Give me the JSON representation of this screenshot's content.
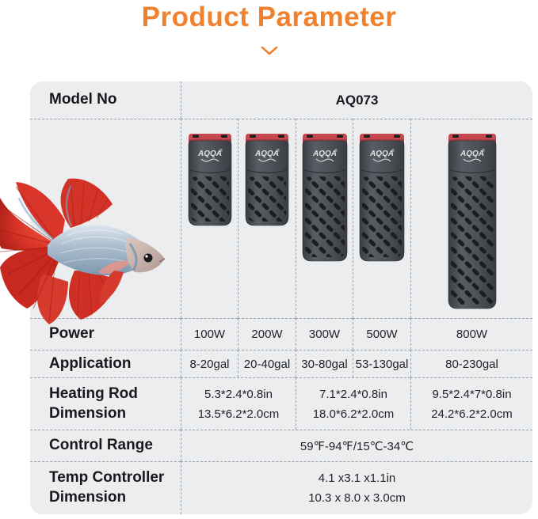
{
  "title": {
    "text": "Product Parameter"
  },
  "colors": {
    "accent_orange": "#F0812E",
    "table_bg": "#ECEDEF",
    "dash_gray": "#99A1A9",
    "heater_body_dark": "#393D42",
    "heater_body_mid": "#585D64",
    "heater_slot": "#1B1D20",
    "heater_cap_red": "#C8474F",
    "heater_cap_red_dark": "#A23A41",
    "logo_light": "#DFE1E3"
  },
  "table": {
    "model_row": {
      "label": "Model No",
      "value": "AQ073"
    },
    "power": {
      "label": "Power",
      "values": [
        "100W",
        "200W",
        "300W",
        "500W",
        "800W"
      ]
    },
    "application": {
      "label": "Application",
      "values": [
        "8-20gal",
        "20-40gal",
        "30-80gal",
        "53-130gal",
        "80-230gal"
      ]
    },
    "heating_rod": {
      "label_line1": "Heating Rod",
      "label_line2": "Dimension",
      "values": [
        {
          "inch": "5.3*2.4*0.8in",
          "cm": "13.5*6.2*2.0cm"
        },
        {
          "inch": "7.1*2.4*0.8in",
          "cm": "18.0*6.2*2.0cm"
        },
        {
          "inch": "9.5*2.4*7*0.8in",
          "cm": "24.2*6.2*2.0cm"
        }
      ]
    },
    "control_range": {
      "label": "Control Range",
      "value": "59℉-94℉/15℃-34℃"
    },
    "temp_controller": {
      "label_line1": "Temp Controller",
      "label_line2": "Dimension",
      "value_line1": "4.1 x3.1 x1.1in",
      "value_line2": "10.3 x 8.0 x 3.0cm"
    }
  },
  "brand": {
    "logo_text": "AQQA",
    "registered_mark": "®"
  }
}
